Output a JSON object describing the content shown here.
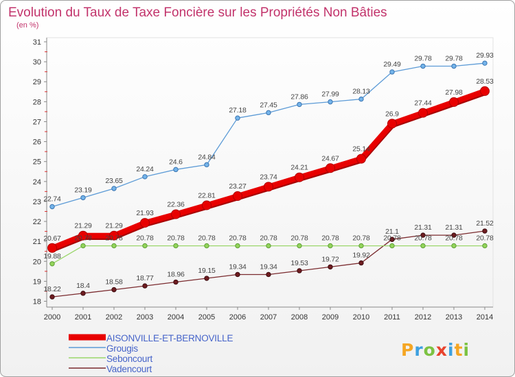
{
  "chart_data": {
    "type": "line",
    "title": "Evolution du Taux de Taxe Foncière sur les Propriétés Non Bâties",
    "subtitle": "(en %)",
    "xlabel": "",
    "ylabel": "",
    "categories": [
      "2000",
      "2001",
      "2002",
      "2003",
      "2004",
      "2005",
      "2006",
      "2007",
      "2008",
      "2009",
      "2010",
      "2011",
      "2012",
      "2013",
      "2014"
    ],
    "ylim": [
      18,
      31
    ],
    "yticks": [
      18,
      19,
      20,
      21,
      22,
      23,
      24,
      25,
      26,
      27,
      28,
      29,
      30,
      31
    ],
    "grid": false,
    "legend_position": "bottom-left",
    "series": [
      {
        "name": "AISONVILLE-ET-BERNOVILLE",
        "color": "#e80000",
        "marker_color": "#e80000",
        "marker_stroke": "#b00000",
        "values": [
          20.67,
          21.29,
          21.29,
          21.93,
          22.36,
          22.81,
          23.27,
          23.74,
          24.21,
          24.67,
          25.14,
          26.9,
          27.44,
          27.98,
          28.53
        ]
      },
      {
        "name": "Grougis",
        "color": "#5b9ad6",
        "marker_color": "#74b4ea",
        "marker_stroke": "#3a74b0",
        "values": [
          22.74,
          23.19,
          23.65,
          24.24,
          24.6,
          24.84,
          27.18,
          27.45,
          27.86,
          27.99,
          28.13,
          29.49,
          29.78,
          29.78,
          29.93
        ]
      },
      {
        "name": "Seboncourt",
        "color": "#9ad66a",
        "marker_color": "#94d45c",
        "marker_stroke": "#5c9e34",
        "values": [
          19.88,
          20.78,
          20.78,
          20.78,
          20.78,
          20.78,
          20.78,
          20.78,
          20.78,
          20.78,
          20.78,
          20.78,
          20.78,
          20.78,
          20.78
        ]
      },
      {
        "name": "Vadencourt",
        "color": "#7a2a2e",
        "marker_color": "#6e1c20",
        "marker_stroke": "#3e0c10",
        "values": [
          18.22,
          18.4,
          18.58,
          18.77,
          18.96,
          19.15,
          19.34,
          19.34,
          19.53,
          19.72,
          19.92,
          21.1,
          21.31,
          21.31,
          21.52
        ]
      }
    ]
  },
  "colors": {
    "title": "#c2336b",
    "legend_text": "#4563c9",
    "axis": "#888888",
    "minor_tick": "#e03030"
  },
  "logo": {
    "text": "Proxiti",
    "colors": [
      "#f5a623",
      "#3da0e0",
      "#7cc242",
      "#e8432d",
      "#3da0e0",
      "#f5a623",
      "#7cc242"
    ]
  }
}
